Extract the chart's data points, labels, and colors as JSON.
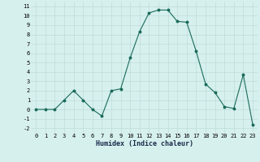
{
  "x": [
    0,
    1,
    2,
    3,
    4,
    5,
    6,
    7,
    8,
    9,
    10,
    11,
    12,
    13,
    14,
    15,
    16,
    17,
    18,
    19,
    20,
    21,
    22,
    23
  ],
  "y": [
    0,
    0,
    0,
    1,
    2,
    1,
    0,
    -0.7,
    2,
    2.2,
    5.5,
    8.3,
    10.3,
    10.6,
    10.6,
    9.4,
    9.3,
    6.2,
    2.7,
    1.8,
    0.3,
    0.1,
    3.7,
    -1.6
  ],
  "line_color": "#1a6b5a",
  "marker_color": "#1a6b5a",
  "bg_color": "#d6f0ee",
  "grid_color": "#b8d8d4",
  "xlabel": "Humidex (Indice chaleur)",
  "xlim": [
    -0.5,
    23.5
  ],
  "ylim": [
    -2.5,
    11.5
  ],
  "yticks": [
    -2,
    -1,
    0,
    1,
    2,
    3,
    4,
    5,
    6,
    7,
    8,
    9,
    10,
    11
  ],
  "xticks": [
    0,
    1,
    2,
    3,
    4,
    5,
    6,
    7,
    8,
    9,
    10,
    11,
    12,
    13,
    14,
    15,
    16,
    17,
    18,
    19,
    20,
    21,
    22,
    23
  ],
  "tick_fontsize": 5.0,
  "xlabel_fontsize": 6.0,
  "linewidth": 0.8,
  "markersize": 1.8
}
